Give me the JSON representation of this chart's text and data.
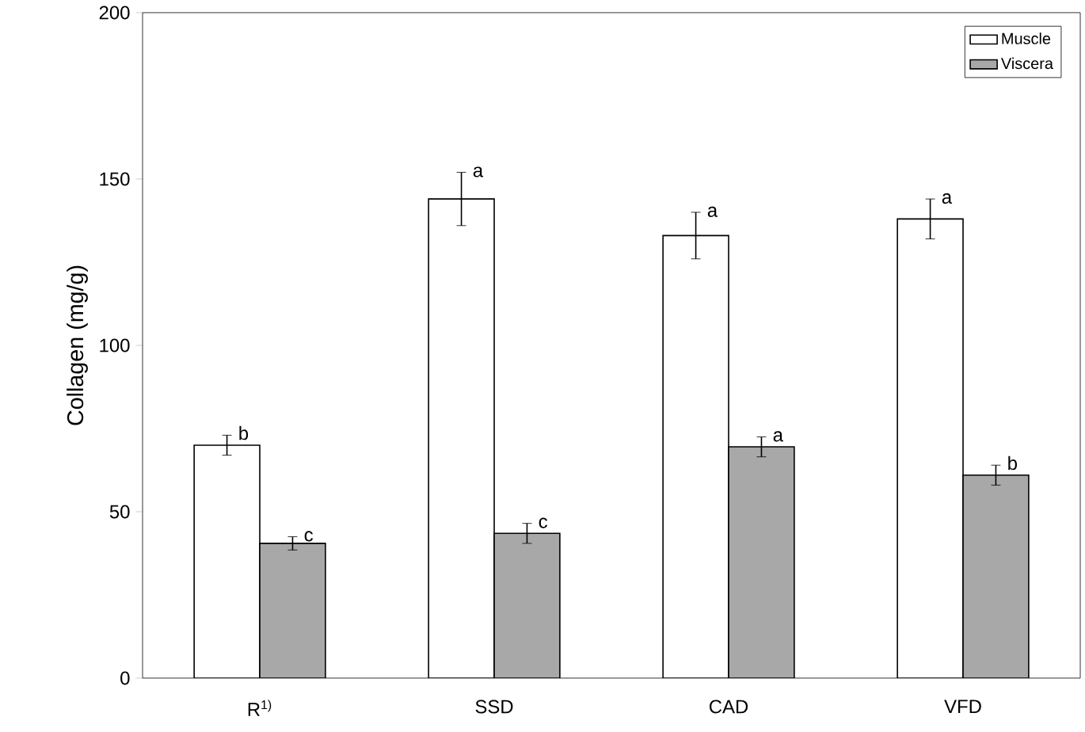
{
  "chart_data": {
    "type": "bar",
    "ylabel": "Collagen (mg/g)",
    "categories": [
      "R$^{1)}$",
      "SSD",
      "CAD",
      "VFD"
    ],
    "series": [
      {
        "name": "Muscle",
        "color": "#ffffff",
        "values": [
          70,
          144,
          133,
          138
        ],
        "errors": [
          3,
          8,
          7,
          6
        ],
        "value_labels": [
          "b",
          "a",
          "a",
          "a"
        ]
      },
      {
        "name": "Viscera",
        "color": "#a8a8a8",
        "values": [
          40.5,
          43.5,
          69.5,
          61
        ],
        "errors": [
          2,
          3,
          3,
          3
        ],
        "value_labels": [
          "c",
          "c",
          "a",
          "b"
        ]
      }
    ],
    "ylim": [
      0,
      200
    ],
    "yticks": [
      0,
      50,
      100,
      150,
      200
    ],
    "grid": false,
    "legend": "top right"
  }
}
